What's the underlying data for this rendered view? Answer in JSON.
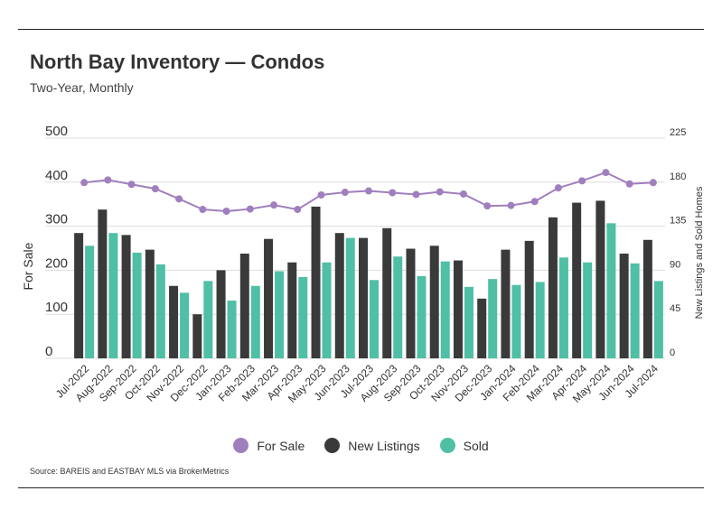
{
  "header": {
    "title": "North Bay Inventory — Condos",
    "subtitle": "Two-Year, Monthly"
  },
  "footer": {
    "source": "Source:  BAREIS and EASTBAY MLS via BrokerMetrics"
  },
  "colors": {
    "for_sale": "#a07fbe",
    "new_listings": "#3a3a3a",
    "sold": "#4fbfa5",
    "grid": "#dddddd"
  },
  "legend": [
    {
      "name": "For Sale",
      "color": "#a07fbe"
    },
    {
      "name": "New Listings",
      "color": "#3a3a3a"
    },
    {
      "name": "Sold",
      "color": "#4fbfa5"
    }
  ],
  "chart_data": {
    "type": "bar",
    "categories": [
      "Jul-2022",
      "Aug-2022",
      "Sep-2022",
      "Oct-2022",
      "Nov-2022",
      "Dec-2022",
      "Jan-2023",
      "Feb-2023",
      "Mar-2023",
      "Apr-2023",
      "May-2023",
      "Jun-2023",
      "Jul-2023",
      "Aug-2023",
      "Sep-2023",
      "Oct-2023",
      "Nov-2023",
      "Dec-2023",
      "Jan-2024",
      "Feb-2024",
      "Mar-2024",
      "Apr-2024",
      "May-2024",
      "Jun-2024",
      "Jul-2024"
    ],
    "series": [
      {
        "name": "New Listings",
        "type": "bar",
        "axis": "right",
        "values": [
          128,
          152,
          126,
          111,
          74,
          45,
          90,
          107,
          122,
          98,
          155,
          128,
          123,
          133,
          112,
          115,
          100,
          61,
          111,
          120,
          144,
          159,
          161,
          107,
          121
        ]
      },
      {
        "name": "Sold",
        "type": "bar",
        "axis": "right",
        "values": [
          115,
          128,
          108,
          96,
          67,
          79,
          59,
          74,
          89,
          83,
          98,
          123,
          80,
          104,
          84,
          99,
          73,
          81,
          75,
          78,
          103,
          98,
          138,
          97,
          79
        ]
      },
      {
        "name": "For Sale",
        "type": "line",
        "axis": "left",
        "values": [
          399,
          405,
          395,
          385,
          362,
          338,
          334,
          339,
          348,
          338,
          371,
          377,
          380,
          376,
          372,
          378,
          373,
          346,
          347,
          356,
          387,
          403,
          422,
          396,
          399
        ]
      }
    ],
    "ylabel": "For Sale",
    "y2label": "New Listings and Sold Homes",
    "ylim": [
      0,
      500
    ],
    "yticks": [
      0,
      100,
      200,
      300,
      400,
      500
    ],
    "y2lim": [
      0,
      225
    ],
    "y2ticks": [
      0,
      45,
      90,
      135,
      180,
      225
    ],
    "grid": true,
    "legend_position": "bottom"
  }
}
